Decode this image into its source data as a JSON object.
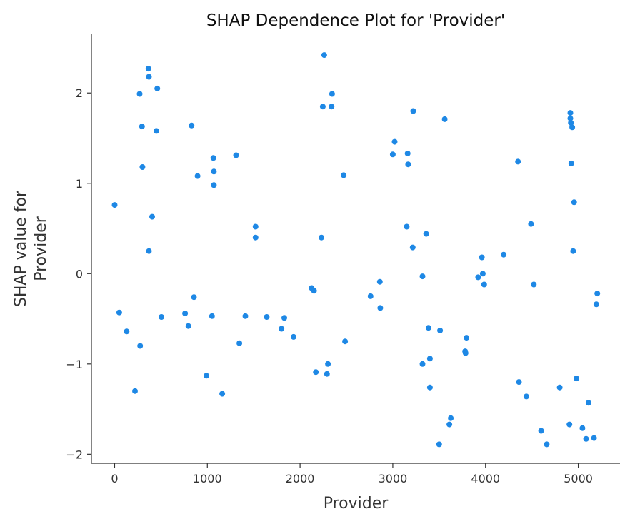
{
  "chart_data": {
    "type": "scatter",
    "title": "SHAP Dependence Plot for 'Provider'",
    "xlabel": "Provider",
    "ylabel": "SHAP value for\nProvider",
    "xlim": [
      -250,
      5450
    ],
    "ylim": [
      -2.1,
      2.65
    ],
    "xticks": [
      0,
      1000,
      2000,
      3000,
      4000,
      5000
    ],
    "xtick_labels": [
      "0",
      "1000",
      "2000",
      "3000",
      "4000",
      "5000"
    ],
    "yticks": [
      -2,
      -1,
      0,
      1,
      2
    ],
    "ytick_labels": [
      "−2",
      "−1",
      "0",
      "1",
      "2"
    ],
    "grid": false,
    "point_color": "#1e88e5",
    "points": [
      {
        "x": 0,
        "y": 0.76
      },
      {
        "x": 50,
        "y": -0.43
      },
      {
        "x": 130,
        "y": -0.64
      },
      {
        "x": 220,
        "y": -1.3
      },
      {
        "x": 270,
        "y": 1.99
      },
      {
        "x": 275,
        "y": -0.8
      },
      {
        "x": 295,
        "y": 1.63
      },
      {
        "x": 300,
        "y": 1.18
      },
      {
        "x": 365,
        "y": 2.27
      },
      {
        "x": 370,
        "y": 2.18
      },
      {
        "x": 370,
        "y": 0.25
      },
      {
        "x": 405,
        "y": 0.63
      },
      {
        "x": 450,
        "y": 1.58
      },
      {
        "x": 460,
        "y": 2.05
      },
      {
        "x": 505,
        "y": -0.48
      },
      {
        "x": 760,
        "y": -0.44
      },
      {
        "x": 795,
        "y": -0.58
      },
      {
        "x": 830,
        "y": 1.64
      },
      {
        "x": 855,
        "y": -0.26
      },
      {
        "x": 895,
        "y": 1.08
      },
      {
        "x": 990,
        "y": -1.13
      },
      {
        "x": 1050,
        "y": -0.47
      },
      {
        "x": 1065,
        "y": 1.28
      },
      {
        "x": 1070,
        "y": 1.13
      },
      {
        "x": 1070,
        "y": 0.98
      },
      {
        "x": 1160,
        "y": -1.33
      },
      {
        "x": 1310,
        "y": 1.31
      },
      {
        "x": 1345,
        "y": -0.77
      },
      {
        "x": 1410,
        "y": -0.47
      },
      {
        "x": 1520,
        "y": 0.52
      },
      {
        "x": 1520,
        "y": 0.4
      },
      {
        "x": 1640,
        "y": -0.48
      },
      {
        "x": 1800,
        "y": -0.61
      },
      {
        "x": 1830,
        "y": -0.49
      },
      {
        "x": 1930,
        "y": -0.7
      },
      {
        "x": 2125,
        "y": -0.16
      },
      {
        "x": 2150,
        "y": -0.19
      },
      {
        "x": 2170,
        "y": -1.09
      },
      {
        "x": 2230,
        "y": 0.4
      },
      {
        "x": 2245,
        "y": 1.85
      },
      {
        "x": 2260,
        "y": 2.42
      },
      {
        "x": 2290,
        "y": -1.11
      },
      {
        "x": 2300,
        "y": -1.0
      },
      {
        "x": 2340,
        "y": 1.85
      },
      {
        "x": 2345,
        "y": 1.99
      },
      {
        "x": 2470,
        "y": 1.09
      },
      {
        "x": 2485,
        "y": -0.75
      },
      {
        "x": 2760,
        "y": -0.25
      },
      {
        "x": 2860,
        "y": -0.09
      },
      {
        "x": 2865,
        "y": -0.38
      },
      {
        "x": 3000,
        "y": 1.32
      },
      {
        "x": 3020,
        "y": 1.46
      },
      {
        "x": 3150,
        "y": 0.52
      },
      {
        "x": 3160,
        "y": 1.33
      },
      {
        "x": 3165,
        "y": 1.21
      },
      {
        "x": 3215,
        "y": 0.29
      },
      {
        "x": 3220,
        "y": 1.8
      },
      {
        "x": 3320,
        "y": -0.03
      },
      {
        "x": 3320,
        "y": -1.0
      },
      {
        "x": 3360,
        "y": 0.44
      },
      {
        "x": 3385,
        "y": -0.6
      },
      {
        "x": 3400,
        "y": -0.94
      },
      {
        "x": 3400,
        "y": -1.26
      },
      {
        "x": 3500,
        "y": -1.89
      },
      {
        "x": 3510,
        "y": -0.63
      },
      {
        "x": 3560,
        "y": 1.71
      },
      {
        "x": 3610,
        "y": -1.67
      },
      {
        "x": 3625,
        "y": -1.6
      },
      {
        "x": 3780,
        "y": -0.86
      },
      {
        "x": 3785,
        "y": -0.88
      },
      {
        "x": 3795,
        "y": -0.71
      },
      {
        "x": 3920,
        "y": -0.04
      },
      {
        "x": 3960,
        "y": 0.18
      },
      {
        "x": 3970,
        "y": 0.0
      },
      {
        "x": 3985,
        "y": -0.12
      },
      {
        "x": 4195,
        "y": 0.21
      },
      {
        "x": 4350,
        "y": 1.24
      },
      {
        "x": 4360,
        "y": -1.2
      },
      {
        "x": 4440,
        "y": -1.36
      },
      {
        "x": 4490,
        "y": 0.55
      },
      {
        "x": 4520,
        "y": -0.12
      },
      {
        "x": 4600,
        "y": -1.74
      },
      {
        "x": 4660,
        "y": -1.89
      },
      {
        "x": 4800,
        "y": -1.26
      },
      {
        "x": 4905,
        "y": -1.67
      },
      {
        "x": 4915,
        "y": 1.78
      },
      {
        "x": 4915,
        "y": 1.72
      },
      {
        "x": 4920,
        "y": 1.67
      },
      {
        "x": 4925,
        "y": 1.22
      },
      {
        "x": 4935,
        "y": 1.62
      },
      {
        "x": 4945,
        "y": 0.25
      },
      {
        "x": 4955,
        "y": 0.79
      },
      {
        "x": 4980,
        "y": -1.16
      },
      {
        "x": 5045,
        "y": -1.71
      },
      {
        "x": 5085,
        "y": -1.83
      },
      {
        "x": 5110,
        "y": -1.43
      },
      {
        "x": 5170,
        "y": -1.82
      },
      {
        "x": 5195,
        "y": -0.34
      },
      {
        "x": 5205,
        "y": -0.22
      }
    ]
  }
}
